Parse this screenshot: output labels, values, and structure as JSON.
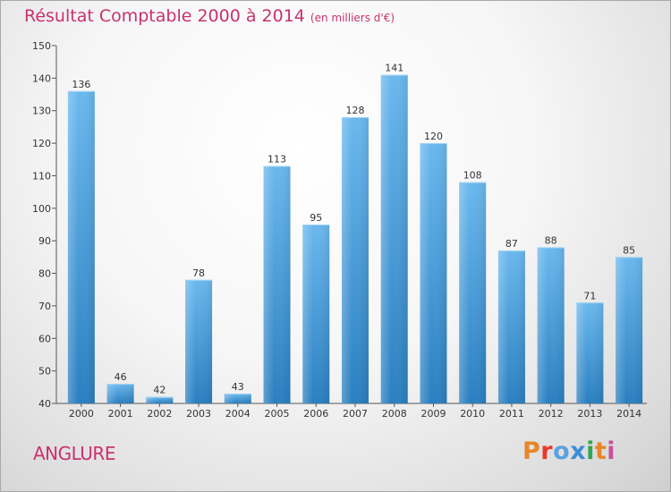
{
  "header": {
    "title": "Résultat Comptable 2000 à 2014",
    "subtitle": "(en milliers d'€)"
  },
  "footer": {
    "commune": "ANGLURE",
    "brand": "Proxiti"
  },
  "colors": {
    "title": "#c8326e",
    "bar_light": "#6ab8ee",
    "bar_dark": "#2a7fc0",
    "brand_letters": [
      "#e8862a",
      "#e63a2e",
      "#5aa2e0",
      "#3b8ed8",
      "#2fa84f",
      "#e8862a",
      "#c84fa0"
    ]
  },
  "chart_data": {
    "type": "bar",
    "title": "Résultat Comptable 2000 à 2014",
    "unit": "(en milliers d'€)",
    "xlabel": "",
    "ylabel": "",
    "categories": [
      "2000",
      "2001",
      "2002",
      "2003",
      "2004",
      "2005",
      "2006",
      "2007",
      "2008",
      "2009",
      "2010",
      "2011",
      "2012",
      "2013",
      "2014"
    ],
    "values": [
      136,
      46,
      42,
      78,
      43,
      113,
      95,
      128,
      141,
      120,
      108,
      87,
      88,
      71,
      85
    ],
    "ylim": [
      40,
      150
    ],
    "yticks": [
      40,
      50,
      60,
      70,
      80,
      90,
      100,
      110,
      120,
      130,
      140,
      150
    ],
    "grid": false,
    "legend": "none"
  }
}
